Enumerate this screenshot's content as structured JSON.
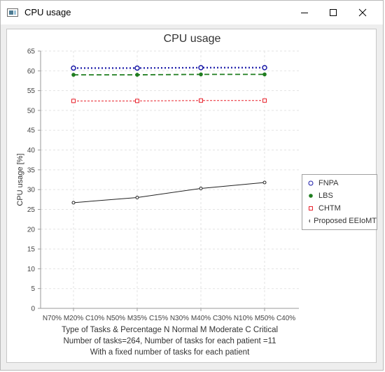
{
  "window": {
    "title": "CPU usage",
    "controls": [
      "minimize-icon",
      "maximize-icon",
      "close-icon"
    ]
  },
  "chart_data": {
    "type": "line",
    "title": "CPU usage",
    "xlabel": "Type of Tasks & Percentage    N Normal M Moderate C Critical",
    "xlabel_lines": [
      "Type of Tasks & Percentage    N Normal M Moderate C Critical",
      "Number of tasks=264,  Number of tasks for each patient =11",
      "With a fixed number of tasks for each patient"
    ],
    "ylabel": "CPU usage [%]",
    "ylim": [
      0,
      65
    ],
    "yticks": [
      0,
      5,
      10,
      15,
      20,
      25,
      30,
      35,
      40,
      45,
      50,
      55,
      60,
      65
    ],
    "grid": true,
    "legend_position": "right",
    "categories": [
      "N70% M20% C10%",
      "N50% M35% C15%",
      "N30% M40% C30%",
      "N10% M50% C40%"
    ],
    "series": [
      {
        "name": "FNPA",
        "values": [
          60.7,
          60.7,
          60.8,
          60.8
        ],
        "color": "#1a1aa8",
        "marker": "circle-open",
        "line": "dotted"
      },
      {
        "name": "LBS",
        "values": [
          59.0,
          59.0,
          59.1,
          59.1
        ],
        "color": "#1f7d1f",
        "marker": "circle-filled",
        "line": "dashed"
      },
      {
        "name": "CHTM",
        "values": [
          52.4,
          52.4,
          52.5,
          52.5
        ],
        "color": "#e8202a",
        "marker": "square-open",
        "line": "dashed"
      },
      {
        "name": "Proposed EEIoMT",
        "values": [
          26.7,
          28.0,
          30.3,
          31.8
        ],
        "color": "#222222",
        "marker": "circle-open-small",
        "line": "solid"
      }
    ]
  }
}
